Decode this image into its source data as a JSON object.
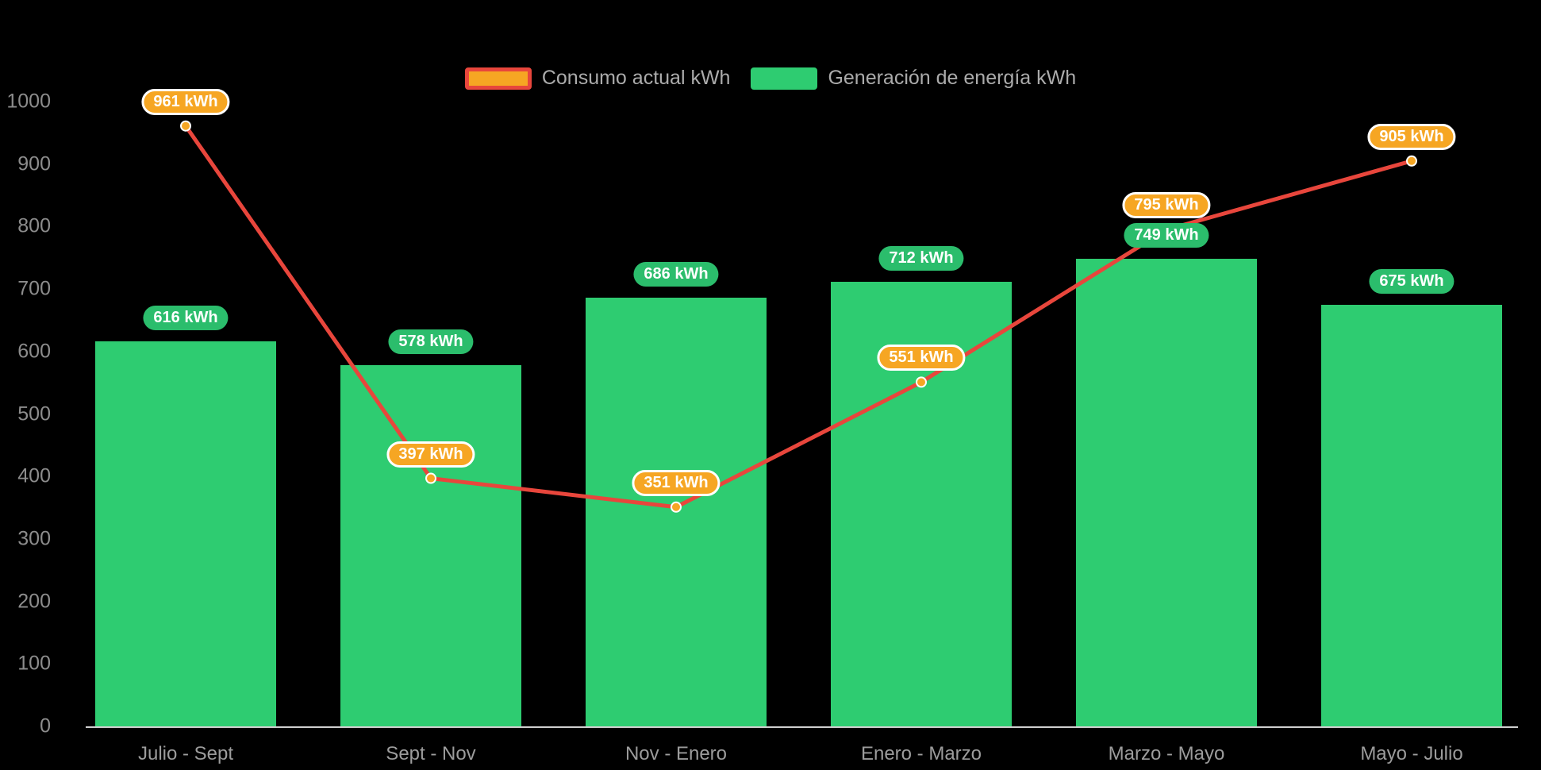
{
  "chart_data": {
    "type": "combo-bar-line",
    "title": "",
    "categories": [
      "Julio - Sept",
      "Sept - Nov",
      "Nov - Enero",
      "Enero - Marzo",
      "Marzo - Mayo",
      "Mayo - Julio"
    ],
    "series": [
      {
        "name": "Consumo actual kWh",
        "type": "line",
        "values": [
          961,
          397,
          351,
          551,
          795,
          905
        ],
        "color": "#e8463c",
        "marker_color": "#f6a623",
        "label_bg": "#f6a623",
        "label_border": "#ffffff"
      },
      {
        "name": "Generación de energía kWh",
        "type": "bar",
        "values": [
          616,
          578,
          686,
          712,
          749,
          675
        ],
        "color": "#2ecc71",
        "label_bg": "#2bbd6c"
      }
    ],
    "value_suffix": " kWh",
    "ylim": [
      0,
      1000
    ],
    "yticks": [
      0,
      100,
      200,
      300,
      400,
      500,
      600,
      700,
      800,
      900,
      1000
    ],
    "grid": false,
    "legend_position": "top",
    "background": "#000000",
    "y_tick_color": "#8c8c8c",
    "x_label_color": "#9c9c9c",
    "axis_line_color": "#cfcfcf",
    "value_label_text_color": "#ffffff"
  },
  "legend": {
    "items": [
      {
        "label": "Consumo actual kWh",
        "swatch_fill": "#f6a623",
        "swatch_border": "#e8463c"
      },
      {
        "label": "Generación de energía kWh",
        "swatch_fill": "#2ecc71",
        "swatch_border": "#2ecc71"
      }
    ]
  }
}
